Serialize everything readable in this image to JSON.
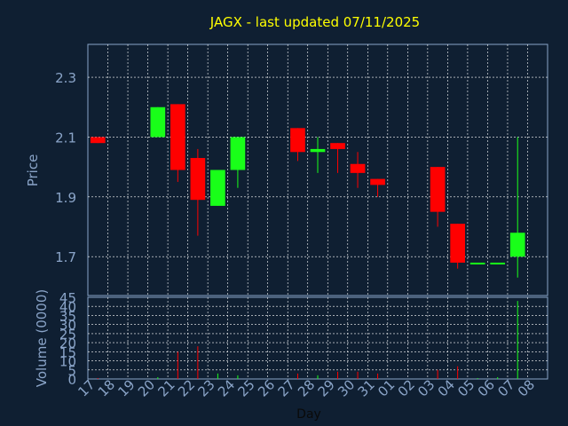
{
  "chart_data": {
    "type": "candlestick",
    "title": "JAGX - last updated 07/11/2025",
    "xlabel": "Day",
    "ylabel": "Price",
    "volume_label": "Volume (0000)",
    "x_tick_labels": [
      "17",
      "18",
      "19",
      "20",
      "21",
      "22",
      "23",
      "24",
      "25",
      "26",
      "27",
      "28",
      "29",
      "30",
      "31",
      "01",
      "02",
      "03",
      "04",
      "05",
      "06",
      "07",
      "08"
    ],
    "price_ticks": [
      "1.7",
      "1.9",
      "2.1",
      "2.3"
    ],
    "volume_ticks": [
      "0",
      "5",
      "10",
      "15",
      "20",
      "25",
      "30",
      "35",
      "40",
      "45"
    ],
    "ylim_price": [
      1.57,
      2.41
    ],
    "ylim_volume": [
      0,
      45
    ],
    "grid": true,
    "colors": {
      "background": "#0f1f32",
      "plot_background": "#0f1f32",
      "up": "#19ff19",
      "down": "#ff0000",
      "title": "#ffff00",
      "axis_text": "#8aa4c8",
      "grid": "#ffffff"
    },
    "candles": [
      {
        "day": "17",
        "open": 2.1,
        "high": 2.1,
        "low": 2.08,
        "close": 2.08
      },
      {
        "day": "20",
        "open": 2.1,
        "high": 2.2,
        "low": 2.1,
        "close": 2.2
      },
      {
        "day": "21",
        "open": 2.21,
        "high": 2.21,
        "low": 1.95,
        "close": 1.99
      },
      {
        "day": "22",
        "open": 2.03,
        "high": 2.06,
        "low": 1.77,
        "close": 1.89
      },
      {
        "day": "23",
        "open": 1.87,
        "high": 1.99,
        "low": 1.87,
        "close": 1.99
      },
      {
        "day": "24",
        "open": 1.99,
        "high": 2.1,
        "low": 1.93,
        "close": 2.1
      },
      {
        "day": "27",
        "open": 2.13,
        "high": 2.13,
        "low": 2.02,
        "close": 2.05
      },
      {
        "day": "28",
        "open": 2.05,
        "high": 2.1,
        "low": 1.98,
        "close": 2.06
      },
      {
        "day": "29",
        "open": 2.08,
        "high": 2.08,
        "low": 1.98,
        "close": 2.06
      },
      {
        "day": "30",
        "open": 2.01,
        "high": 2.05,
        "low": 1.93,
        "close": 1.98
      },
      {
        "day": "31",
        "open": 1.96,
        "high": 1.96,
        "low": 1.9,
        "close": 1.94
      },
      {
        "day": "03",
        "open": 2.0,
        "high": 2.0,
        "low": 1.8,
        "close": 1.85
      },
      {
        "day": "04",
        "open": 1.81,
        "high": 1.81,
        "low": 1.66,
        "close": 1.68
      },
      {
        "day": "05",
        "open": 1.68,
        "high": 1.68,
        "low": 1.68,
        "close": 1.68
      },
      {
        "day": "06",
        "open": 1.68,
        "high": 1.68,
        "low": 1.68,
        "close": 1.68
      },
      {
        "day": "07",
        "open": 1.7,
        "high": 2.1,
        "low": 1.63,
        "close": 1.78
      }
    ],
    "volumes": [
      {
        "day": "17",
        "value": 0.5,
        "dir": "down"
      },
      {
        "day": "20",
        "value": 1,
        "dir": "up"
      },
      {
        "day": "21",
        "value": 15,
        "dir": "down"
      },
      {
        "day": "22",
        "value": 18,
        "dir": "down"
      },
      {
        "day": "23",
        "value": 3,
        "dir": "up"
      },
      {
        "day": "24",
        "value": 2,
        "dir": "up"
      },
      {
        "day": "27",
        "value": 3,
        "dir": "down"
      },
      {
        "day": "28",
        "value": 2,
        "dir": "up"
      },
      {
        "day": "29",
        "value": 4,
        "dir": "down"
      },
      {
        "day": "30",
        "value": 4,
        "dir": "down"
      },
      {
        "day": "31",
        "value": 3,
        "dir": "down"
      },
      {
        "day": "03",
        "value": 5,
        "dir": "down"
      },
      {
        "day": "04",
        "value": 7,
        "dir": "down"
      },
      {
        "day": "05",
        "value": 0.5,
        "dir": "up"
      },
      {
        "day": "06",
        "value": 1,
        "dir": "up"
      },
      {
        "day": "07",
        "value": 43,
        "dir": "up"
      }
    ]
  }
}
